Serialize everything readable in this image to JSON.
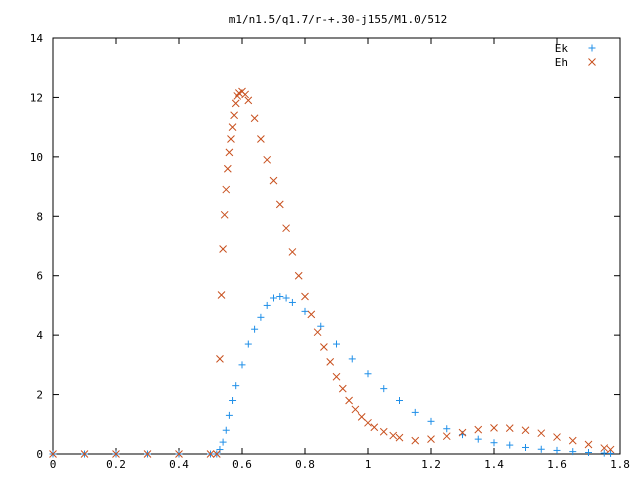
{
  "chart_data": {
    "type": "scatter",
    "title": "m1/n1.5/q1.7/r-+.30-j155/M1.0/512",
    "xlim": [
      0,
      1.8
    ],
    "ylim": [
      0,
      14
    ],
    "xticks": [
      "0",
      "0.2",
      "0.4",
      "0.6",
      "0.8",
      "1",
      "1.2",
      "1.4",
      "1.6",
      "1.8"
    ],
    "yticks": [
      "0",
      "2",
      "4",
      "6",
      "8",
      "10",
      "12",
      "14"
    ],
    "grid": false,
    "legend_position": "top-right",
    "series": [
      {
        "name": "Ek",
        "marker": "+",
        "color": "#1f8fe8",
        "points": [
          [
            0.0,
            0
          ],
          [
            0.1,
            0
          ],
          [
            0.2,
            0
          ],
          [
            0.3,
            0
          ],
          [
            0.4,
            0
          ],
          [
            0.5,
            0
          ],
          [
            0.52,
            0
          ],
          [
            0.53,
            0.15
          ],
          [
            0.54,
            0.4
          ],
          [
            0.55,
            0.8
          ],
          [
            0.56,
            1.3
          ],
          [
            0.57,
            1.8
          ],
          [
            0.58,
            2.3
          ],
          [
            0.6,
            3.0
          ],
          [
            0.62,
            3.7
          ],
          [
            0.64,
            4.2
          ],
          [
            0.66,
            4.6
          ],
          [
            0.68,
            5.0
          ],
          [
            0.7,
            5.25
          ],
          [
            0.72,
            5.3
          ],
          [
            0.74,
            5.25
          ],
          [
            0.76,
            5.1
          ],
          [
            0.8,
            4.8
          ],
          [
            0.85,
            4.3
          ],
          [
            0.9,
            3.7
          ],
          [
            0.95,
            3.2
          ],
          [
            1.0,
            2.7
          ],
          [
            1.05,
            2.2
          ],
          [
            1.1,
            1.8
          ],
          [
            1.15,
            1.4
          ],
          [
            1.2,
            1.1
          ],
          [
            1.25,
            0.85
          ],
          [
            1.3,
            0.65
          ],
          [
            1.35,
            0.5
          ],
          [
            1.4,
            0.38
          ],
          [
            1.45,
            0.3
          ],
          [
            1.5,
            0.22
          ],
          [
            1.55,
            0.16
          ],
          [
            1.6,
            0.12
          ],
          [
            1.65,
            0.08
          ],
          [
            1.7,
            0.05
          ],
          [
            1.75,
            0.03
          ],
          [
            1.77,
            0.02
          ]
        ]
      },
      {
        "name": "Eh",
        "marker": "x",
        "color": "#c8501e",
        "points": [
          [
            0.0,
            0
          ],
          [
            0.1,
            0
          ],
          [
            0.2,
            0
          ],
          [
            0.3,
            0
          ],
          [
            0.4,
            0
          ],
          [
            0.5,
            0
          ],
          [
            0.52,
            0
          ],
          [
            0.53,
            3.2
          ],
          [
            0.535,
            5.35
          ],
          [
            0.54,
            6.9
          ],
          [
            0.545,
            8.05
          ],
          [
            0.55,
            8.9
          ],
          [
            0.555,
            9.6
          ],
          [
            0.56,
            10.15
          ],
          [
            0.565,
            10.6
          ],
          [
            0.57,
            11.0
          ],
          [
            0.575,
            11.4
          ],
          [
            0.58,
            11.8
          ],
          [
            0.585,
            12.05
          ],
          [
            0.59,
            12.15
          ],
          [
            0.6,
            12.2
          ],
          [
            0.61,
            12.1
          ],
          [
            0.62,
            11.9
          ],
          [
            0.64,
            11.3
          ],
          [
            0.66,
            10.6
          ],
          [
            0.68,
            9.9
          ],
          [
            0.7,
            9.2
          ],
          [
            0.72,
            8.4
          ],
          [
            0.74,
            7.6
          ],
          [
            0.76,
            6.8
          ],
          [
            0.78,
            6.0
          ],
          [
            0.8,
            5.3
          ],
          [
            0.82,
            4.7
          ],
          [
            0.84,
            4.1
          ],
          [
            0.86,
            3.6
          ],
          [
            0.88,
            3.1
          ],
          [
            0.9,
            2.6
          ],
          [
            0.92,
            2.2
          ],
          [
            0.94,
            1.8
          ],
          [
            0.96,
            1.5
          ],
          [
            0.98,
            1.25
          ],
          [
            1.0,
            1.05
          ],
          [
            1.02,
            0.9
          ],
          [
            1.05,
            0.75
          ],
          [
            1.08,
            0.62
          ],
          [
            1.1,
            0.55
          ],
          [
            1.15,
            0.45
          ],
          [
            1.2,
            0.5
          ],
          [
            1.25,
            0.6
          ],
          [
            1.3,
            0.72
          ],
          [
            1.35,
            0.82
          ],
          [
            1.4,
            0.88
          ],
          [
            1.45,
            0.87
          ],
          [
            1.5,
            0.8
          ],
          [
            1.55,
            0.7
          ],
          [
            1.6,
            0.57
          ],
          [
            1.65,
            0.45
          ],
          [
            1.7,
            0.32
          ],
          [
            1.75,
            0.2
          ],
          [
            1.77,
            0.15
          ]
        ]
      }
    ]
  }
}
